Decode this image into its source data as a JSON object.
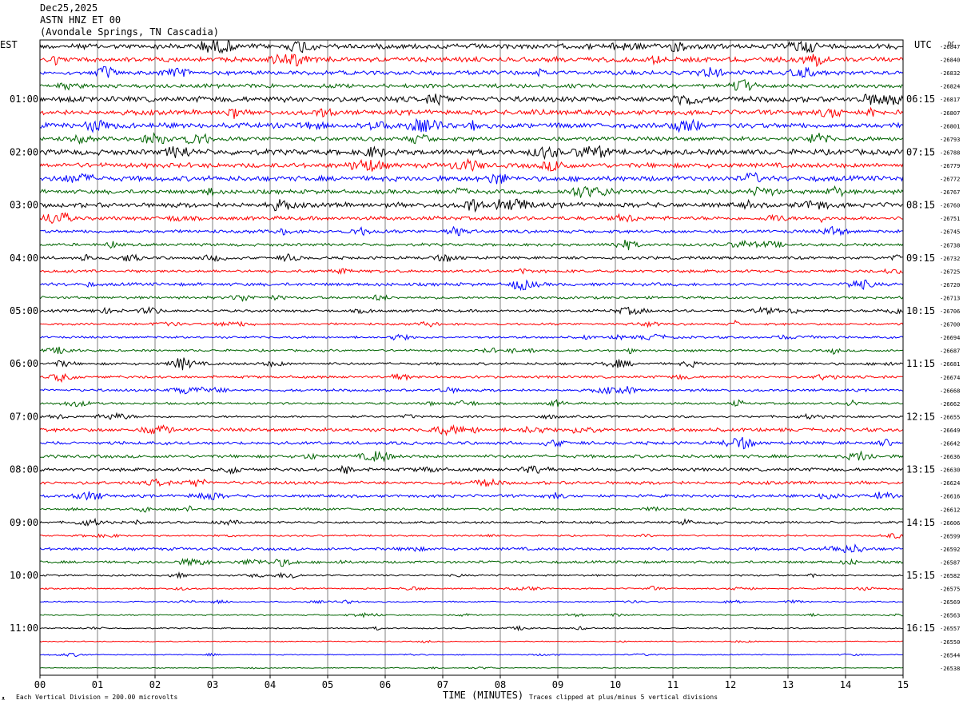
{
  "header": {
    "date": "Dec25,2025",
    "station": "ASTN HNZ ET 00",
    "location": "(Avondale Springs, TN Cascadia)"
  },
  "left_axis_title": "EST",
  "right_axis_title": "UTC",
  "dc_label": "DC",
  "footer": {
    "scale_note": "Each Vertical Division =  200.00 microvolts",
    "xlabel": "TIME (MINUTES)",
    "clip_note": "Traces clipped at plus/minus 5 vertical divisions",
    "corner_mark": "ᴥ"
  },
  "colors": {
    "cycle": [
      "#000000",
      "#ff0000",
      "#0000ff",
      "#006400"
    ],
    "grid": "#808080"
  },
  "chart_data": {
    "type": "line",
    "title": "ASTN HNZ ET 00",
    "xlabel": "TIME (MINUTES)",
    "x_ticks": [
      "00",
      "01",
      "02",
      "03",
      "04",
      "05",
      "06",
      "07",
      "08",
      "09",
      "10",
      "11",
      "12",
      "13",
      "14",
      "15"
    ],
    "xlim": [
      0,
      15
    ],
    "left_labels": [
      "01:00",
      "02:00",
      "03:00",
      "04:00",
      "05:00",
      "06:00",
      "07:00",
      "08:00",
      "09:00",
      "10:00",
      "11:00"
    ],
    "right_labels": [
      "06:15",
      "07:15",
      "08:15",
      "09:15",
      "10:15",
      "11:15",
      "12:15",
      "13:15",
      "14:15",
      "15:15",
      "16:15"
    ],
    "trace_dc_values": [
      "-26847",
      "-26840",
      "-26832",
      "-26824",
      "-26817",
      "-26807",
      "-26801",
      "-26793",
      "-26788",
      "-26779",
      "-26772",
      "-26767",
      "-26760",
      "-26751",
      "-26745",
      "-26738",
      "-26732",
      "-26725",
      "-26720",
      "-26713",
      "-26706",
      "-26700",
      "-26694",
      "-26687",
      "-26681",
      "-26674",
      "-26668",
      "-26662",
      "-26655",
      "-26649",
      "-26642",
      "-26636",
      "-26630",
      "-26624",
      "-26616",
      "-26612",
      "-26606",
      "-26599",
      "-26592",
      "-26587",
      "-26582",
      "-26575",
      "-26569",
      "-26563",
      "-26557",
      "-26550",
      "-26544",
      "-26538"
    ],
    "trace_count": 48,
    "minutes_per_trace": 15,
    "amplitude_levels": [
      3.2,
      3.0,
      2.6,
      2.4,
      3.4,
      3.0,
      3.2,
      2.6,
      3.4,
      3.0,
      3.2,
      2.6,
      3.0,
      2.4,
      2.0,
      1.8,
      1.8,
      1.8,
      2.0,
      1.6,
      1.6,
      1.4,
      1.4,
      1.4,
      1.6,
      1.6,
      1.6,
      1.4,
      1.4,
      2.2,
      2.0,
      2.0,
      2.0,
      2.0,
      1.8,
      1.6,
      1.4,
      1.0,
      1.8,
      1.6,
      1.1,
      0.9,
      0.8,
      0.8,
      0.8,
      0.6,
      0.6,
      0.5
    ]
  }
}
